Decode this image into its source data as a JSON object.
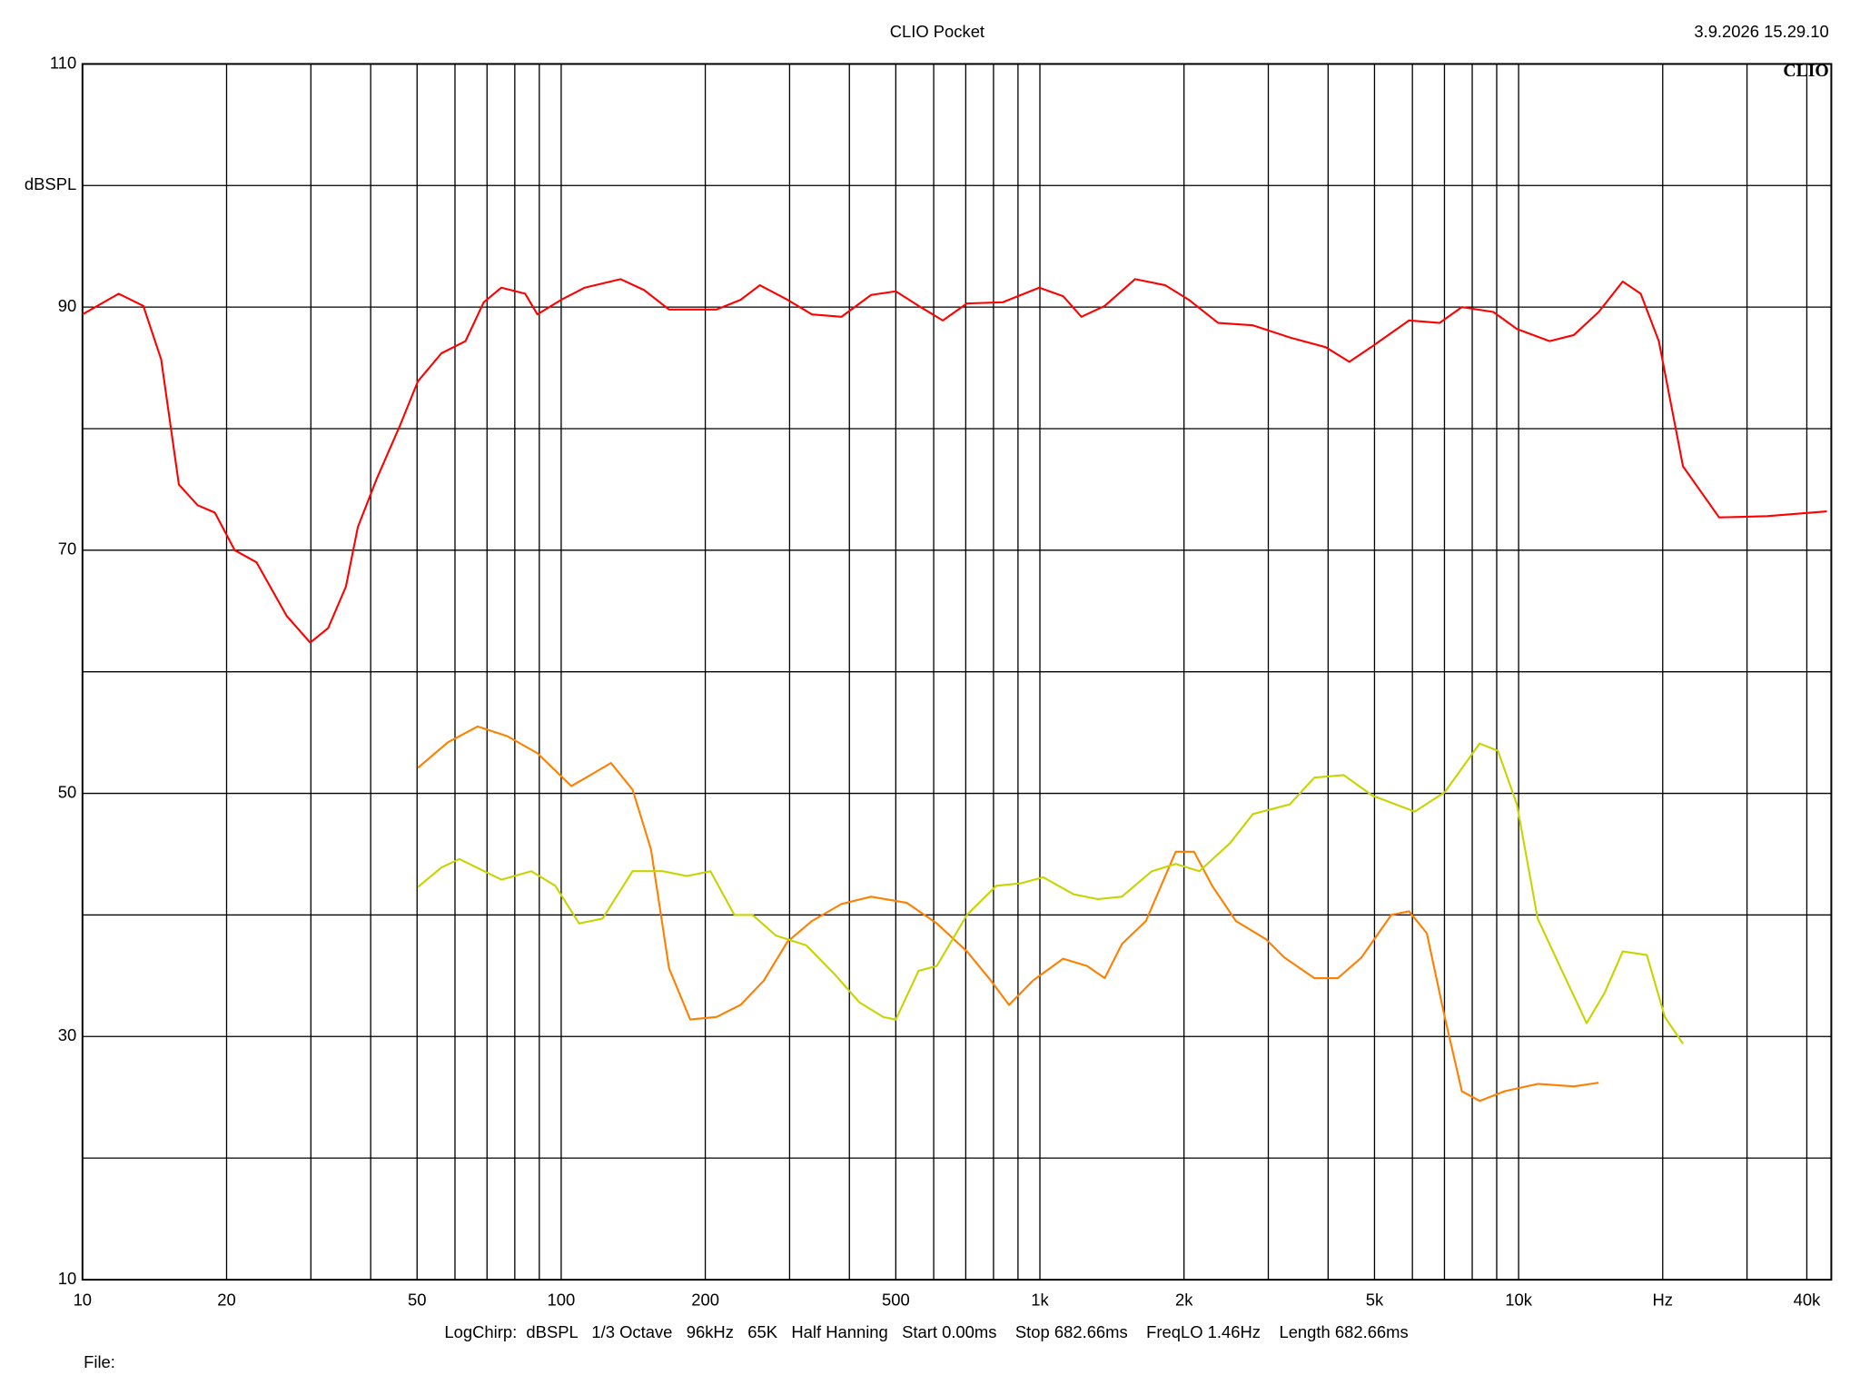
{
  "chart_data": {
    "type": "line",
    "title": "CLIO Pocket",
    "timestamp": "3.9.2026 15.29.10",
    "logo": "CLIO",
    "settings_line": "LogChirp:  dBSPL   1/3 Octave   96kHz   65K   Half Hanning   Start 0.00ms    Stop 682.66ms    FreqLO 1.46Hz    Length 682.66ms",
    "file_label": "File:",
    "x_log": true,
    "grid": true,
    "xlim": [
      10,
      45000
    ],
    "ylim": [
      10,
      110
    ],
    "xticks": [
      10,
      20,
      50,
      100,
      200,
      500,
      {
        "value": 1000,
        "label": "1k"
      },
      {
        "value": 2000,
        "label": "2k"
      },
      {
        "value": 5000,
        "label": "5k"
      },
      {
        "value": 10000,
        "label": "10k"
      },
      {
        "value": 20000,
        "label": "Hz"
      },
      {
        "value": 40000,
        "label": "40k"
      }
    ],
    "xminor_ticks": [
      30,
      40,
      60,
      70,
      80,
      90,
      300,
      400,
      600,
      700,
      800,
      900,
      3000,
      4000,
      6000,
      7000,
      8000,
      9000,
      30000
    ],
    "yticks": [
      10,
      30,
      50,
      70,
      90,
      {
        "value": 100,
        "label": "dBSPL"
      },
      110
    ],
    "yminor_ticks": [
      20,
      40,
      60,
      80
    ],
    "series": [
      {
        "color": "#ff0000",
        "x": [
          10,
          11.9,
          13.4,
          14.6,
          15.9,
          17.4,
          18.9,
          20.8,
          23.1,
          26.7,
          29.9,
          32.6,
          35.5,
          37.6,
          41.1,
          46.1,
          50.2,
          56.2,
          63.1,
          68.9,
          75,
          84.1,
          89.2,
          100,
          112,
          133,
          149,
          168,
          188,
          211,
          237,
          260,
          297,
          334,
          385,
          444,
          500,
          558,
          627,
          704,
          837,
          997,
          1118,
          1221,
          1366,
          1581,
          1827,
          2047,
          2357,
          2786,
          3328,
          3954,
          4430,
          4959,
          5902,
          6842,
          7611,
          8856,
          9919,
          11607,
          13040,
          14700,
          16500,
          17990,
          19630,
          22050,
          26230,
          33050,
          44040
        ],
        "values": [
          89.4,
          91.1,
          90.1,
          85.7,
          75.4,
          73.7,
          73.1,
          70.0,
          69.0,
          64.6,
          62.4,
          63.6,
          67.0,
          71.9,
          75.8,
          80.3,
          83.9,
          86.2,
          87.2,
          90.4,
          91.6,
          91.1,
          89.4,
          90.6,
          91.6,
          92.3,
          91.4,
          89.8,
          89.8,
          89.8,
          90.6,
          91.8,
          90.6,
          89.4,
          89.2,
          91.0,
          91.3,
          90.1,
          88.9,
          90.3,
          90.4,
          91.6,
          90.9,
          89.2,
          90.1,
          92.3,
          91.8,
          90.6,
          88.7,
          88.5,
          87.5,
          86.7,
          85.5,
          86.8,
          88.9,
          88.7,
          90.0,
          89.6,
          88.2,
          87.2,
          87.7,
          89.6,
          92.1,
          91.1,
          87.2,
          76.9,
          72.7,
          72.8,
          73.2
        ]
      },
      {
        "color": "#ff7f00",
        "x": [
          50.2,
          58,
          66.9,
          77.2,
          89.2,
          105,
          115,
          127,
          141,
          154,
          168,
          186,
          211,
          237,
          265,
          297,
          334,
          385,
          444,
          527,
          609,
          704,
          790,
          862,
          967,
          1118,
          1255,
          1366,
          1483,
          1665,
          1922,
          2099,
          2290,
          2567,
          2967,
          3240,
          3743,
          4192,
          4696,
          5420,
          5902,
          6430,
          7010,
          7611,
          8292,
          9357,
          10960,
          13040,
          14700
        ],
        "values": [
          52.1,
          54.2,
          55.5,
          54.7,
          53.3,
          50.6,
          51.5,
          52.5,
          50.3,
          45.4,
          35.6,
          31.4,
          31.6,
          32.6,
          34.6,
          37.8,
          39.5,
          40.9,
          41.5,
          41.0,
          39.3,
          37.0,
          34.6,
          32.6,
          34.6,
          36.4,
          35.8,
          34.8,
          37.6,
          39.5,
          45.2,
          45.2,
          42.4,
          39.5,
          38.0,
          36.5,
          34.8,
          34.8,
          36.5,
          40.0,
          40.3,
          38.5,
          31.6,
          25.5,
          24.7,
          25.5,
          26.1,
          25.9,
          26.2
        ]
      },
      {
        "color": "#c8d400",
        "x": [
          50.2,
          56.2,
          61.3,
          75,
          86.6,
          97.2,
          109,
          122,
          141,
          163,
          183,
          205,
          230,
          251,
          281,
          325,
          373,
          420,
          471,
          500,
          558,
          609,
          704,
          811,
          911,
          1016,
          1176,
          1320,
          1483,
          1714,
          1922,
          2154,
          2495,
          2786,
          3328,
          3743,
          4312,
          4959,
          6069,
          7010,
          8292,
          9051,
          9919,
          10960,
          12320,
          13870,
          15130,
          16500,
          18530,
          20210,
          22050
        ],
        "values": [
          42.3,
          43.9,
          44.6,
          42.9,
          43.6,
          42.4,
          39.3,
          39.7,
          43.6,
          43.6,
          43.2,
          43.6,
          40.0,
          40.0,
          38.3,
          37.5,
          35.1,
          32.8,
          31.6,
          31.4,
          35.4,
          35.8,
          40.0,
          42.4,
          42.6,
          43.1,
          41.7,
          41.3,
          41.5,
          43.6,
          44.2,
          43.6,
          45.9,
          48.3,
          49.1,
          51.3,
          51.5,
          49.8,
          48.5,
          50.1,
          54.1,
          53.5,
          49.1,
          39.7,
          35.4,
          31.1,
          33.6,
          37.0,
          36.7,
          31.6,
          29.4
        ]
      }
    ]
  }
}
